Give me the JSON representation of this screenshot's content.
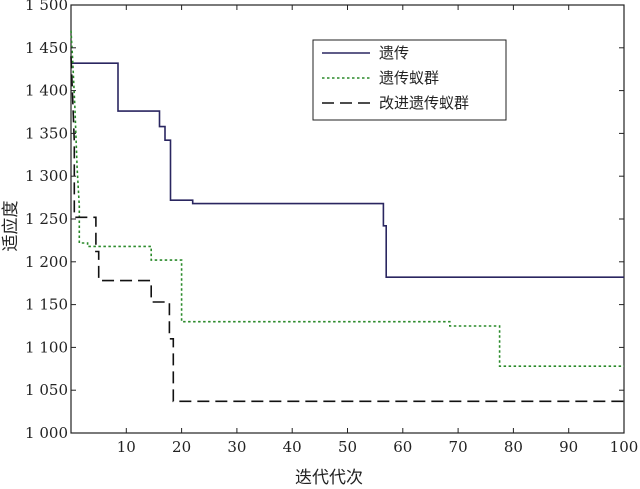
{
  "chart_data": {
    "type": "line",
    "title": "",
    "xlabel": "迭代代次",
    "ylabel": "适应度",
    "xlim": [
      0,
      100
    ],
    "ylim": [
      1000,
      1500
    ],
    "xticks": [
      10,
      20,
      30,
      40,
      50,
      60,
      70,
      80,
      90,
      100
    ],
    "xtick_labels": [
      "10",
      "20",
      "30",
      "40",
      "50",
      "60",
      "70",
      "80",
      "90",
      "100"
    ],
    "yticks": [
      1000,
      1050,
      1100,
      1150,
      1200,
      1250,
      1300,
      1350,
      1400,
      1450,
      1500
    ],
    "ytick_labels": [
      "1 000",
      "1 050",
      "1 100",
      "1 150",
      "1 200",
      "1 250",
      "1 300",
      "1 350",
      "1 400",
      "1 450",
      "1 500"
    ],
    "grid": false,
    "legend_position": "top-right",
    "series": [
      {
        "name": "遗传",
        "style": "solid",
        "color": "#2a2660",
        "x": [
          0,
          8.5,
          8.5,
          16,
          16,
          17,
          17,
          18,
          18,
          22,
          22,
          56.5,
          56.5,
          57,
          57,
          100
        ],
        "y": [
          1432,
          1432,
          1376,
          1376,
          1358,
          1358,
          1342,
          1342,
          1272,
          1272,
          1268,
          1268,
          1242,
          1242,
          1182,
          1182
        ]
      },
      {
        "name": "遗传蚁群",
        "style": "dotted",
        "color": "#2a8a2a",
        "x": [
          0,
          0.3,
          0.7,
          1.1,
          1.5,
          1.5,
          3.0,
          3.0,
          14.5,
          14.5,
          20,
          20,
          68.5,
          68.5,
          77.5,
          77.5,
          100
        ],
        "y": [
          1470,
          1435,
          1380,
          1310,
          1265,
          1222,
          1222,
          1218,
          1218,
          1202,
          1202,
          1130,
          1130,
          1125,
          1125,
          1078,
          1078
        ]
      },
      {
        "name": "改进遗传蚁群",
        "style": "dashed",
        "color": "#111111",
        "x": [
          0,
          0.3,
          0.6,
          0.6,
          4.5,
          4.5,
          5,
          5,
          14.5,
          14.5,
          17.8,
          17.8,
          18.5,
          18.5,
          100
        ],
        "y": [
          1440,
          1390,
          1340,
          1252,
          1252,
          1212,
          1212,
          1178,
          1178,
          1153,
          1153,
          1110,
          1110,
          1037,
          1037
        ]
      }
    ]
  }
}
